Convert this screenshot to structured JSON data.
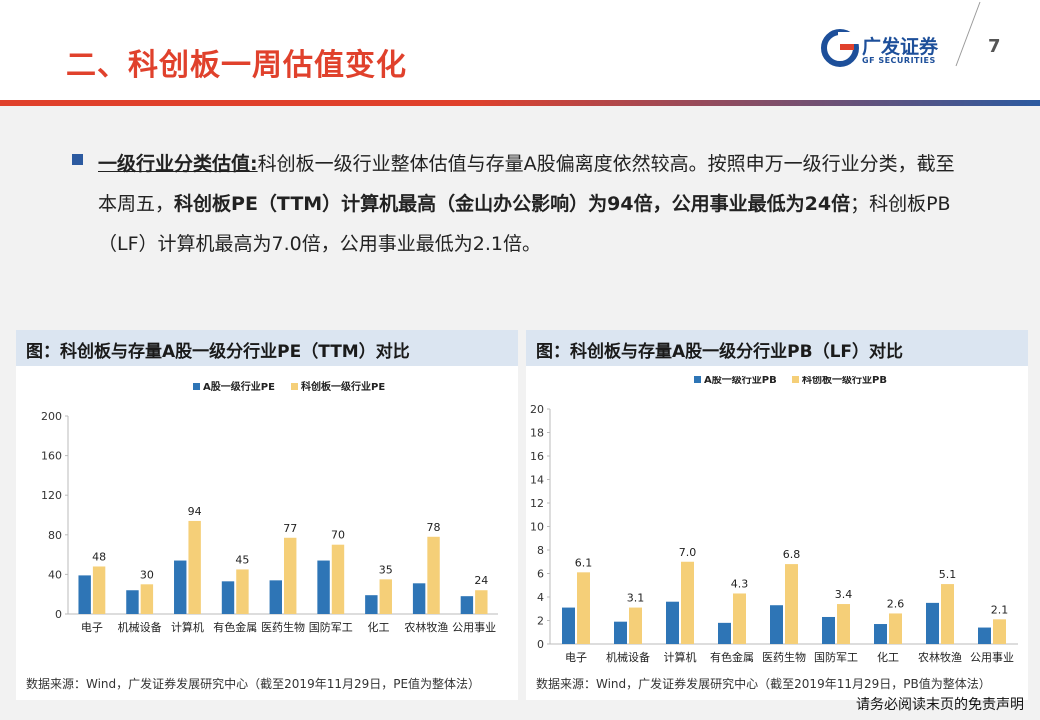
{
  "header": {
    "title": "二、科创板一周估值变化",
    "logo_cn": "广发证券",
    "logo_en": "GF SECURITIES",
    "page_number": "7"
  },
  "summary": {
    "heading": "一级行业分类估值:",
    "text_1": "科创板一级行业整体估值与存量A股偏离度依然较高。按照申万一级行业分类，截至本周五，",
    "bold_1": "科创板PE（TTM）计算机最高（金山办公影响）为94倍，公用事业最低为24倍",
    "text_2": "；科创板PB（LF）计算机最高为7.0倍，公用事业最低为2.1倍。"
  },
  "colors": {
    "series_a": "#2e75b6",
    "series_b": "#f5cf78",
    "accent": "#e0412c",
    "brand": "#1d4f9a"
  },
  "chart_data": [
    {
      "type": "bar",
      "title": "图：科创板与存量A股一级分行业PE（TTM）对比",
      "categories": [
        "电子",
        "机械设备",
        "计算机",
        "有色金属",
        "医药生物",
        "国防军工",
        "化工",
        "农林牧渔",
        "公用事业"
      ],
      "series": [
        {
          "name": "A股一级行业PE",
          "values": [
            39,
            24,
            54,
            33,
            34,
            54,
            19,
            31,
            18
          ]
        },
        {
          "name": "科创板一级行业PE",
          "values": [
            48,
            30,
            94,
            45,
            77,
            70,
            35,
            78,
            24
          ]
        }
      ],
      "data_labels": [
        "48",
        "30",
        "94",
        "45",
        "77",
        "70",
        "35",
        "78",
        "24"
      ],
      "yticks": [
        "0",
        "40",
        "80",
        "120",
        "160",
        "200"
      ],
      "ylim": [
        0,
        200
      ],
      "source": "数据来源：Wind，广发证券发展研究中心（截至2019年11月29日，PE值为整体法）"
    },
    {
      "type": "bar",
      "title": "图：科创板与存量A股一级分行业PB（LF）对比",
      "categories": [
        "电子",
        "机械设备",
        "计算机",
        "有色金属",
        "医药生物",
        "国防军工",
        "化工",
        "农林牧渔",
        "公用事业"
      ],
      "series": [
        {
          "name": "A股一级行业PB",
          "values": [
            3.1,
            1.9,
            3.6,
            1.8,
            3.3,
            2.3,
            1.7,
            3.5,
            1.4
          ]
        },
        {
          "name": "科创板一级行业PB",
          "values": [
            6.1,
            3.1,
            7.0,
            4.3,
            6.8,
            3.4,
            2.6,
            5.1,
            2.1
          ]
        }
      ],
      "data_labels": [
        "6.1",
        "3.1",
        "7.0",
        "4.3",
        "6.8",
        "3.4",
        "2.6",
        "5.1",
        "2.1"
      ],
      "yticks": [
        "0",
        "2",
        "4",
        "6",
        "8",
        "10",
        "12",
        "14",
        "16",
        "18",
        "20"
      ],
      "ylim": [
        0,
        20
      ],
      "source": "数据来源：Wind，广发证券发展研究中心（截至2019年11月29日，PB值为整体法）"
    }
  ],
  "footer": {
    "disclaimer": "请务必阅读末页的免责声明"
  }
}
